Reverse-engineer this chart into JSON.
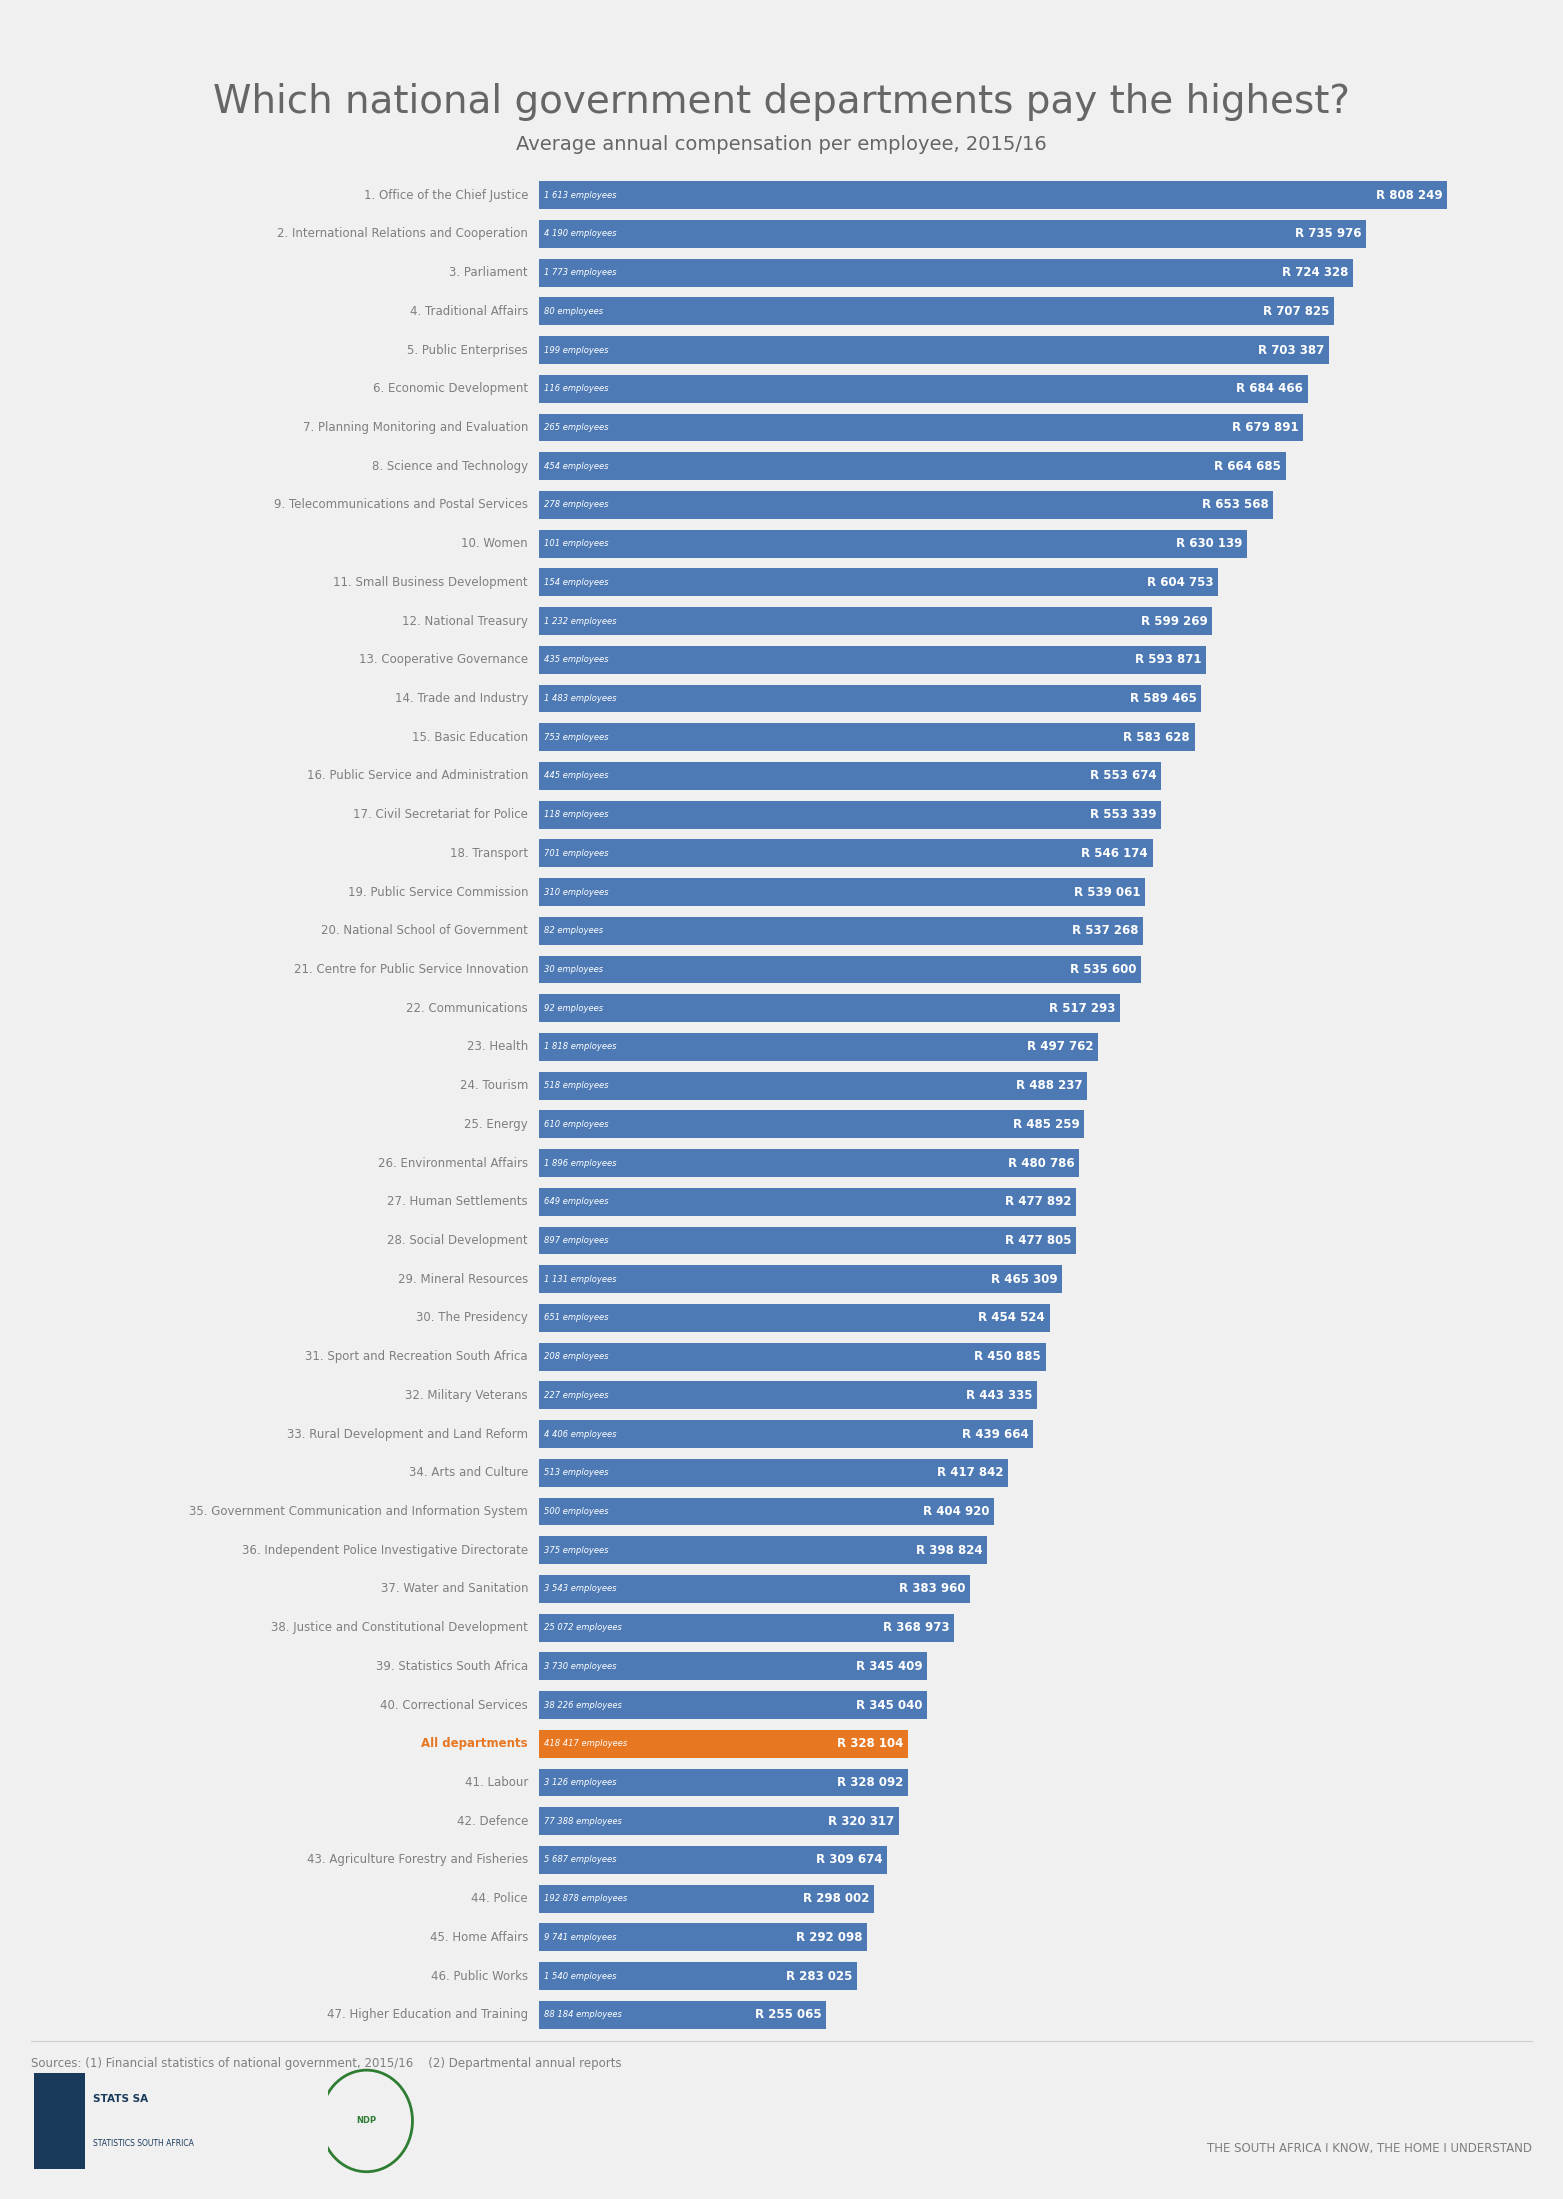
{
  "title": "Which national government departments pay the highest?",
  "subtitle": "Average annual compensation per employee, 2015/16",
  "bar_color": "#4d7ab5",
  "highlight_color": "#e87722",
  "text_color": "#7f7f7f",
  "title_color": "#666666",
  "background_color": "#f0f0f0",
  "departments": [
    {
      "rank": 1,
      "name": "1. Office of the Chief Justice",
      "employees": "1 613 employees",
      "salary": 808249
    },
    {
      "rank": 2,
      "name": "2. International Relations and Cooperation",
      "employees": "4 190 employees",
      "salary": 735976
    },
    {
      "rank": 3,
      "name": "3. Parliament",
      "employees": "1 773 employees",
      "salary": 724328
    },
    {
      "rank": 4,
      "name": "4. Traditional Affairs",
      "employees": "80 employees",
      "salary": 707825
    },
    {
      "rank": 5,
      "name": "5. Public Enterprises",
      "employees": "199 employees",
      "salary": 703387
    },
    {
      "rank": 6,
      "name": "6. Economic Development",
      "employees": "116 employees",
      "salary": 684466
    },
    {
      "rank": 7,
      "name": "7. Planning Monitoring and Evaluation",
      "employees": "265 employees",
      "salary": 679891
    },
    {
      "rank": 8,
      "name": "8. Science and Technology",
      "employees": "454 employees",
      "salary": 664685
    },
    {
      "rank": 9,
      "name": "9. Telecommunications and Postal Services",
      "employees": "278 employees",
      "salary": 653568
    },
    {
      "rank": 10,
      "name": "10. Women",
      "employees": "101 employees",
      "salary": 630139
    },
    {
      "rank": 11,
      "name": "11. Small Business Development",
      "employees": "154 employees",
      "salary": 604753
    },
    {
      "rank": 12,
      "name": "12. National Treasury",
      "employees": "1 232 employees",
      "salary": 599269
    },
    {
      "rank": 13,
      "name": "13. Cooperative Governance",
      "employees": "435 employees",
      "salary": 593871
    },
    {
      "rank": 14,
      "name": "14. Trade and Industry",
      "employees": "1 483 employees",
      "salary": 589465
    },
    {
      "rank": 15,
      "name": "15. Basic Education",
      "employees": "753 employees",
      "salary": 583628
    },
    {
      "rank": 16,
      "name": "16. Public Service and Administration",
      "employees": "445 employees",
      "salary": 553674
    },
    {
      "rank": 17,
      "name": "17. Civil Secretariat for Police",
      "employees": "118 employees",
      "salary": 553339
    },
    {
      "rank": 18,
      "name": "18. Transport",
      "employees": "701 employees",
      "salary": 546174
    },
    {
      "rank": 19,
      "name": "19. Public Service Commission",
      "employees": "310 employees",
      "salary": 539061
    },
    {
      "rank": 20,
      "name": "20. National School of Government",
      "employees": "82 employees",
      "salary": 537268
    },
    {
      "rank": 21,
      "name": "21. Centre for Public Service Innovation",
      "employees": "30 employees",
      "salary": 535600
    },
    {
      "rank": 22,
      "name": "22. Communications",
      "employees": "92 employees",
      "salary": 517293
    },
    {
      "rank": 23,
      "name": "23. Health",
      "employees": "1 818 employees",
      "salary": 497762
    },
    {
      "rank": 24,
      "name": "24. Tourism",
      "employees": "518 employees",
      "salary": 488237
    },
    {
      "rank": 25,
      "name": "25. Energy",
      "employees": "610 employees",
      "salary": 485259
    },
    {
      "rank": 26,
      "name": "26. Environmental Affairs",
      "employees": "1 896 employees",
      "salary": 480786
    },
    {
      "rank": 27,
      "name": "27. Human Settlements",
      "employees": "649 employees",
      "salary": 477892
    },
    {
      "rank": 28,
      "name": "28. Social Development",
      "employees": "897 employees",
      "salary": 477805
    },
    {
      "rank": 29,
      "name": "29. Mineral Resources",
      "employees": "1 131 employees",
      "salary": 465309
    },
    {
      "rank": 30,
      "name": "30. The Presidency",
      "employees": "651 employees",
      "salary": 454524
    },
    {
      "rank": 31,
      "name": "31. Sport and Recreation South Africa",
      "employees": "208 employees",
      "salary": 450885
    },
    {
      "rank": 32,
      "name": "32. Military Veterans",
      "employees": "227 employees",
      "salary": 443335
    },
    {
      "rank": 33,
      "name": "33. Rural Development and Land Reform",
      "employees": "4 406 employees",
      "salary": 439664
    },
    {
      "rank": 34,
      "name": "34. Arts and Culture",
      "employees": "513 employees",
      "salary": 417842
    },
    {
      "rank": 35,
      "name": "35. Government Communication and Information System",
      "employees": "500 employees",
      "salary": 404920
    },
    {
      "rank": 36,
      "name": "36. Independent Police Investigative Directorate",
      "employees": "375 employees",
      "salary": 398824
    },
    {
      "rank": 37,
      "name": "37. Water and Sanitation",
      "employees": "3 543 employees",
      "salary": 383960
    },
    {
      "rank": 38,
      "name": "38. Justice and Constitutional Development",
      "employees": "25 072 employees",
      "salary": 368973
    },
    {
      "rank": 39,
      "name": "39. Statistics South Africa",
      "employees": "3 730 employees",
      "salary": 345409
    },
    {
      "rank": 40,
      "name": "40. Correctional Services",
      "employees": "38 226 employees",
      "salary": 345040
    },
    {
      "rank": "all",
      "name": "All departments",
      "employees": "418 417 employees",
      "salary": 328104
    },
    {
      "rank": 41,
      "name": "41. Labour",
      "employees": "3 126 employees",
      "salary": 328092
    },
    {
      "rank": 42,
      "name": "42. Defence",
      "employees": "77 388 employees",
      "salary": 320317
    },
    {
      "rank": 43,
      "name": "43. Agriculture Forestry and Fisheries",
      "employees": "5 687 employees",
      "salary": 309674
    },
    {
      "rank": 44,
      "name": "44. Police",
      "employees": "192 878 employees",
      "salary": 298002
    },
    {
      "rank": 45,
      "name": "45. Home Affairs",
      "employees": "9 741 employees",
      "salary": 292098
    },
    {
      "rank": 46,
      "name": "46. Public Works",
      "employees": "1 540 employees",
      "salary": 283025
    },
    {
      "rank": 47,
      "name": "47. Higher Education and Training",
      "employees": "88 184 employees",
      "salary": 255065
    }
  ],
  "sources": "Sources: (1) Financial statistics of national government, 2015/16    (2) Departmental annual reports",
  "footer_text": "THE SOUTH AFRICA I KNOW, THE HOME I UNDERSTAND"
}
